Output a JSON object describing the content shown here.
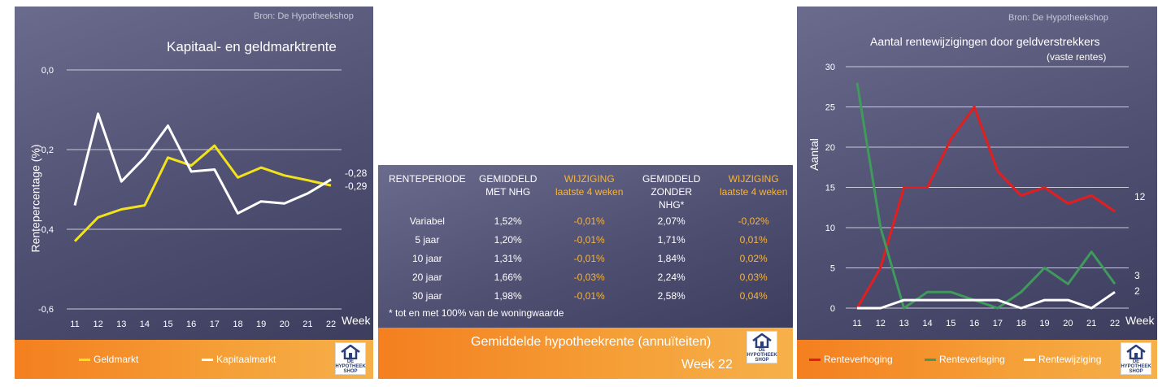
{
  "left": {
    "source": "Bron: De Hypotheekshop",
    "title": "Kapitaal- en geldmarktrente",
    "end_labels": [
      "-0,28",
      "-0,29"
    ],
    "legend": [
      "Geldmarkt",
      "Kapitaalmarkt"
    ]
  },
  "middle": {
    "headers": [
      [
        "RENTEPERIODE",
        ""
      ],
      [
        "GEMIDDELD",
        "MET NHG"
      ],
      [
        "WIJZIGING",
        "laatste 4 weken"
      ],
      [
        "GEMIDDELD",
        "ZONDER NHG*"
      ],
      [
        "WIJZIGING",
        "laatste 4 weken"
      ]
    ],
    "rows": [
      [
        "Variabel",
        "1,52%",
        "-0,01%",
        "2,07%",
        "-0,02%"
      ],
      [
        "5 jaar",
        "1,20%",
        "-0,01%",
        "1,71%",
        "0,01%"
      ],
      [
        "10 jaar",
        "1,31%",
        "-0,01%",
        "1,84%",
        "0,02%"
      ],
      [
        "20 jaar",
        "1,66%",
        "-0,03%",
        "2,24%",
        "0,03%"
      ],
      [
        "30 jaar",
        "1,98%",
        "-0,01%",
        "2,58%",
        "0,04%"
      ]
    ],
    "note": "* tot en met 100% van de woningwaarde",
    "title": "Gemiddelde hypotheekrente (annuïteiten)",
    "week": "Week 22"
  },
  "right": {
    "source": "Bron: De Hypotheekshop",
    "title": "Aantal rentewijzigingen door geldverstrekkers",
    "subtitle": "(vaste rentes)",
    "end_labels": [
      "12",
      "3",
      "2"
    ],
    "legend": [
      "Renteverhoging",
      "Renteverlaging",
      "Rentewijziging"
    ]
  },
  "logo": {
    "line1": "DE",
    "line2": "HYPOTHEEK",
    "line3": "SHOP"
  },
  "colors": {
    "yellow": "#f2e21b",
    "white": "#ffffff",
    "red": "#e31e1e",
    "green": "#3f9a5b",
    "orange": "#f47f1f"
  },
  "chart_data": [
    {
      "type": "line",
      "title": "Kapitaal- en geldmarktrente",
      "xlabel": "Week",
      "ylabel": "Rentepercentage (%)",
      "x": [
        11,
        12,
        13,
        14,
        15,
        16,
        17,
        18,
        19,
        20,
        21,
        22
      ],
      "yticks": [
        "0,0",
        "-0,2",
        "-0,4",
        "-0,6"
      ],
      "ylim": [
        -0.6,
        0.0
      ],
      "grid": true,
      "legend_position": "bottom",
      "series": [
        {
          "name": "Geldmarkt",
          "color": "#f2e21b",
          "values": [
            -0.43,
            -0.37,
            -0.35,
            -0.34,
            -0.22,
            -0.24,
            -0.19,
            -0.27,
            -0.245,
            -0.265,
            -0.277,
            -0.29
          ]
        },
        {
          "name": "Kapitaalmarkt",
          "color": "#ffffff",
          "values": [
            -0.34,
            -0.11,
            -0.28,
            -0.22,
            -0.14,
            -0.255,
            -0.25,
            -0.36,
            -0.33,
            -0.335,
            -0.31,
            -0.275
          ]
        }
      ]
    },
    {
      "type": "line",
      "title": "Aantal rentewijzigingen door geldverstrekkers",
      "subtitle": "(vaste rentes)",
      "xlabel": "Week",
      "ylabel": "Aantal",
      "x": [
        11,
        12,
        13,
        14,
        15,
        16,
        17,
        18,
        19,
        20,
        21,
        22
      ],
      "yticks": [
        "30",
        "25",
        "20",
        "15",
        "10",
        "5",
        "0"
      ],
      "ylim": [
        0,
        30
      ],
      "grid": true,
      "legend_position": "bottom",
      "series": [
        {
          "name": "Renteverhoging",
          "color": "#e31e1e",
          "values": [
            0,
            5,
            15,
            15,
            21,
            25,
            17,
            14,
            15,
            13,
            14,
            12
          ]
        },
        {
          "name": "Renteverlaging",
          "color": "#3f9a5b",
          "values": [
            28,
            10,
            0,
            2,
            2,
            1,
            0,
            2,
            5,
            3,
            7,
            3
          ]
        },
        {
          "name": "Rentewijziging",
          "color": "#ffffff",
          "values": [
            0,
            0,
            1,
            1,
            1,
            1,
            1,
            0,
            1,
            1,
            0,
            2
          ]
        }
      ]
    }
  ]
}
